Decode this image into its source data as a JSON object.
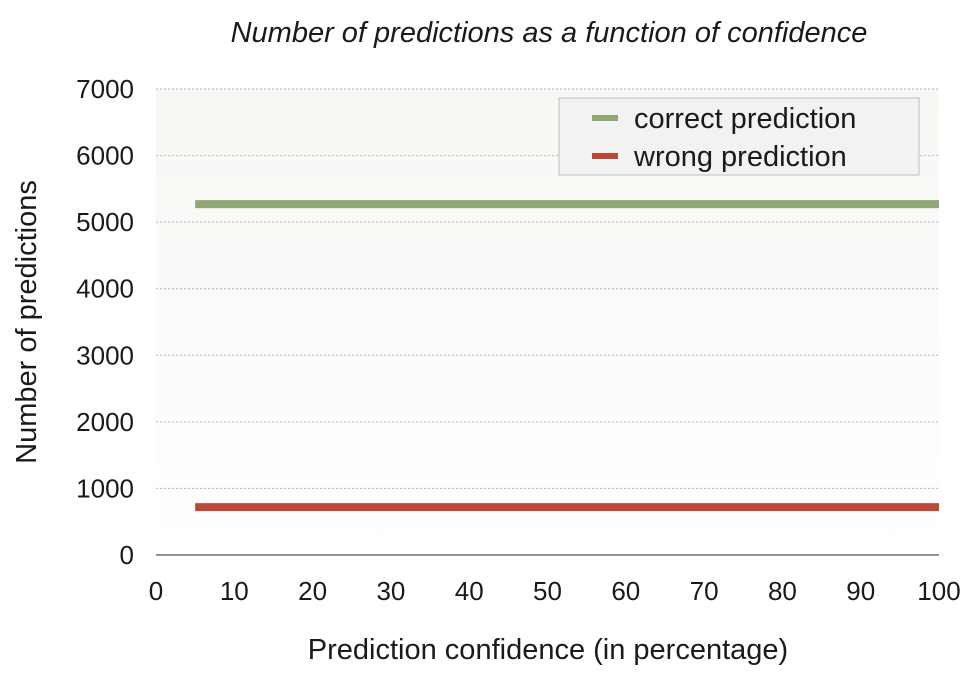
{
  "chart_data": {
    "type": "line",
    "title": "Number of predictions as a function of confidence",
    "xlabel": "Prediction confidence (in percentage)",
    "ylabel": "Number of predictions",
    "xlim": [
      0,
      100
    ],
    "ylim": [
      0,
      7000
    ],
    "x_ticks": [
      0,
      10,
      20,
      30,
      40,
      50,
      60,
      70,
      80,
      90,
      100
    ],
    "y_ticks": [
      0,
      1000,
      2000,
      3000,
      4000,
      5000,
      6000,
      7000
    ],
    "grid": true,
    "legend_position": "top-right",
    "x": [
      5,
      100
    ],
    "series": [
      {
        "name": "correct prediction",
        "color": "#8fa876",
        "values": [
          5270,
          5270
        ]
      },
      {
        "name": "wrong prediction",
        "color": "#b94a3a",
        "values": [
          720,
          720
        ]
      }
    ]
  }
}
